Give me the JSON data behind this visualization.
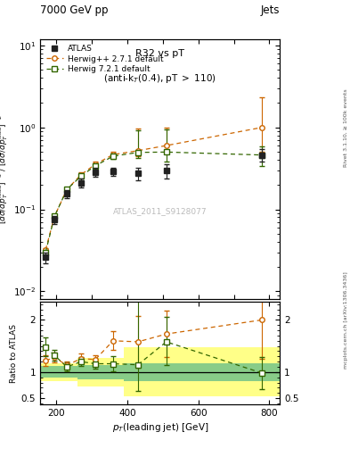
{
  "title_top": "7000 GeV pp",
  "title_right": "Jets",
  "plot_title": "R32 vs pT",
  "plot_subtitle": "(anti-k$_\\mathrm{T}$(0.4), pT > 110)",
  "watermark": "ATLAS_2011_S9128077",
  "rivet_label": "Rivet 3.1.10, ≥ 100k events",
  "mcplots_label": "mcplots.cern.ch [arXiv:1306.3436]",
  "ylabel_main": "$[d\\sigma/dp_T^\\mathrm{lead}]^{-3}$ / $[d\\sigma/dp_T^\\mathrm{lead}]^{-2}$",
  "ylabel_ratio": "Ratio to ATLAS",
  "xlabel": "$p_T$(leading jet) [GeV]",
  "xlim": [
    155,
    830
  ],
  "ylim_main": [
    0.008,
    12.0
  ],
  "ylim_ratio": [
    0.38,
    2.35
  ],
  "atlas_data": {
    "x": [
      170,
      195,
      230,
      270,
      310,
      360,
      430,
      510,
      780
    ],
    "y": [
      0.026,
      0.075,
      0.155,
      0.21,
      0.285,
      0.29,
      0.275,
      0.295,
      0.46
    ],
    "yerr_lo": [
      0.004,
      0.009,
      0.018,
      0.025,
      0.035,
      0.035,
      0.05,
      0.06,
      0.08
    ],
    "yerr_hi": [
      0.004,
      0.009,
      0.018,
      0.025,
      0.035,
      0.035,
      0.05,
      0.06,
      0.08
    ],
    "color": "#222222",
    "label": "ATLAS"
  },
  "herwig_pp": {
    "x": [
      170,
      195,
      230,
      270,
      310,
      360,
      430,
      510,
      780
    ],
    "y": [
      0.032,
      0.082,
      0.175,
      0.265,
      0.355,
      0.465,
      0.52,
      0.6,
      1.0
    ],
    "yerr_lo": [
      0.002,
      0.006,
      0.012,
      0.018,
      0.025,
      0.035,
      0.07,
      0.12,
      0.5
    ],
    "yerr_hi": [
      0.002,
      0.006,
      0.012,
      0.018,
      0.025,
      0.035,
      0.45,
      0.4,
      1.3
    ],
    "color": "#cc6600",
    "label": "Herwig++ 2.7.1 default"
  },
  "herwig7": {
    "x": [
      170,
      195,
      230,
      270,
      310,
      360,
      430,
      510,
      780
    ],
    "y": [
      0.03,
      0.082,
      0.175,
      0.255,
      0.34,
      0.445,
      0.495,
      0.5,
      0.46
    ],
    "yerr_lo": [
      0.002,
      0.006,
      0.012,
      0.018,
      0.022,
      0.035,
      0.07,
      0.12,
      0.12
    ],
    "yerr_hi": [
      0.002,
      0.006,
      0.012,
      0.018,
      0.022,
      0.035,
      0.42,
      0.45,
      0.12
    ],
    "color": "#336600",
    "label": "Herwig 7.2.1 default"
  },
  "ratio_herwig_pp": {
    "x": [
      170,
      195,
      230,
      270,
      310,
      360,
      430,
      510,
      780
    ],
    "y": [
      1.22,
      1.28,
      1.13,
      1.26,
      1.24,
      1.6,
      1.58,
      1.73,
      2.0
    ],
    "yerr_lo": [
      0.1,
      0.1,
      0.08,
      0.09,
      0.09,
      0.18,
      0.5,
      0.45,
      0.75
    ],
    "yerr_hi": [
      0.1,
      0.1,
      0.08,
      0.09,
      0.09,
      0.18,
      0.5,
      0.45,
      1.25
    ]
  },
  "ratio_herwig7": {
    "x": [
      170,
      195,
      230,
      270,
      310,
      360,
      430,
      510,
      780
    ],
    "y": [
      1.48,
      1.32,
      1.1,
      1.2,
      1.16,
      1.16,
      1.14,
      1.58,
      0.98
    ],
    "yerr_lo": [
      0.18,
      0.1,
      0.08,
      0.09,
      0.09,
      0.14,
      0.5,
      0.45,
      0.3
    ],
    "yerr_hi": [
      0.18,
      0.1,
      0.08,
      0.09,
      0.09,
      0.14,
      1.55,
      0.48,
      0.3
    ]
  },
  "band_yellow": {
    "x_edges": [
      155,
      215,
      260,
      390,
      455,
      545,
      680,
      830
    ],
    "y_lo": [
      0.83,
      0.83,
      0.73,
      0.53,
      0.53,
      0.53,
      0.53
    ],
    "y_hi": [
      1.17,
      1.17,
      1.27,
      1.47,
      1.47,
      1.47,
      1.47
    ],
    "color": "#ffff88"
  },
  "band_green": {
    "x_edges": [
      155,
      215,
      260,
      390,
      455,
      545,
      680,
      830
    ],
    "y_lo": [
      0.89,
      0.89,
      0.86,
      0.83,
      0.83,
      0.83,
      0.83
    ],
    "y_hi": [
      1.11,
      1.11,
      1.14,
      1.17,
      1.17,
      1.17,
      1.17
    ],
    "color": "#88cc88"
  },
  "background_color": "#ffffff"
}
